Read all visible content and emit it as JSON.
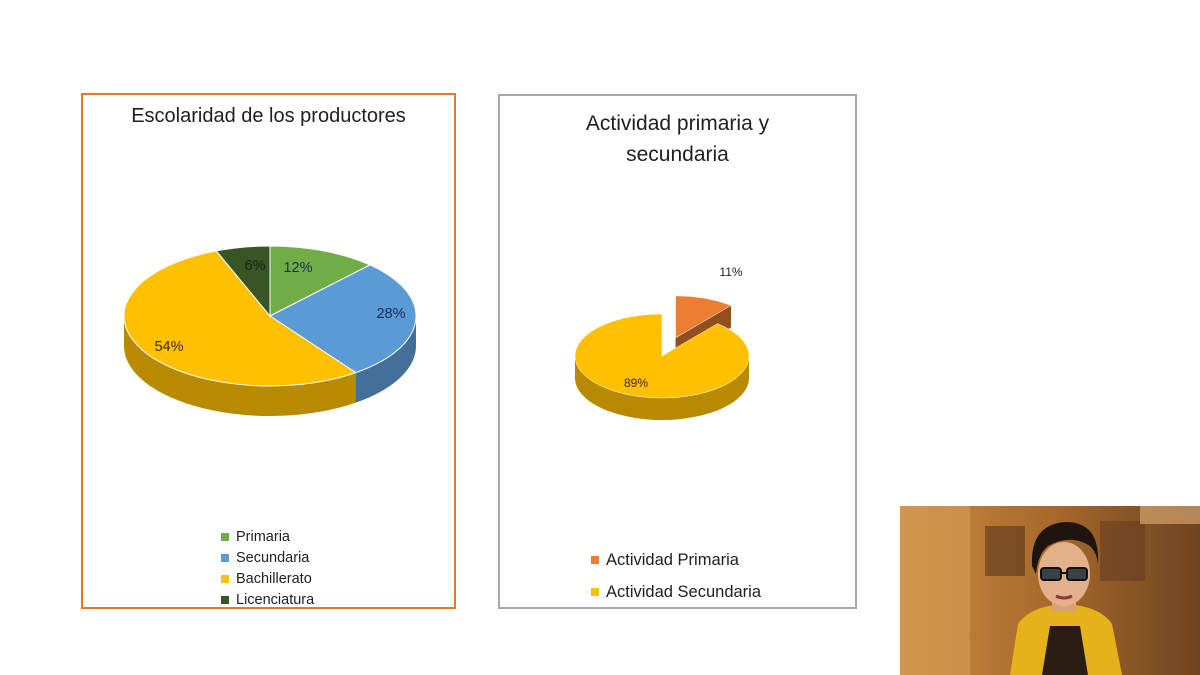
{
  "colors": {
    "primaria": "#70ad47",
    "secundaria": "#5b9bd5",
    "bachillerato": "#ffc000",
    "licenciatura": "#375623",
    "actividad_primaria": "#ed7d31",
    "actividad_secundaria": "#ffc000"
  },
  "chart_data": [
    {
      "type": "pie",
      "title": "Escolaridad de los productores",
      "categories": [
        "Primaria",
        "Secundaria",
        "Bachillerato",
        "Licenciatura"
      ],
      "values": [
        12,
        28,
        54,
        6
      ],
      "labels": [
        "12%",
        "28%",
        "54%",
        "6%"
      ],
      "legend": "bottom",
      "style": "3d"
    },
    {
      "type": "pie",
      "title": "Actividad primaria y secundaria",
      "categories": [
        "Actividad Primaria",
        "Actividad Secundaria"
      ],
      "values": [
        11,
        89
      ],
      "labels": [
        "11%",
        "89%"
      ],
      "exploded": [
        "Actividad Primaria"
      ],
      "legend": "bottom",
      "style": "3d"
    }
  ],
  "webcam": {
    "icon": "presenter-video-icon"
  }
}
